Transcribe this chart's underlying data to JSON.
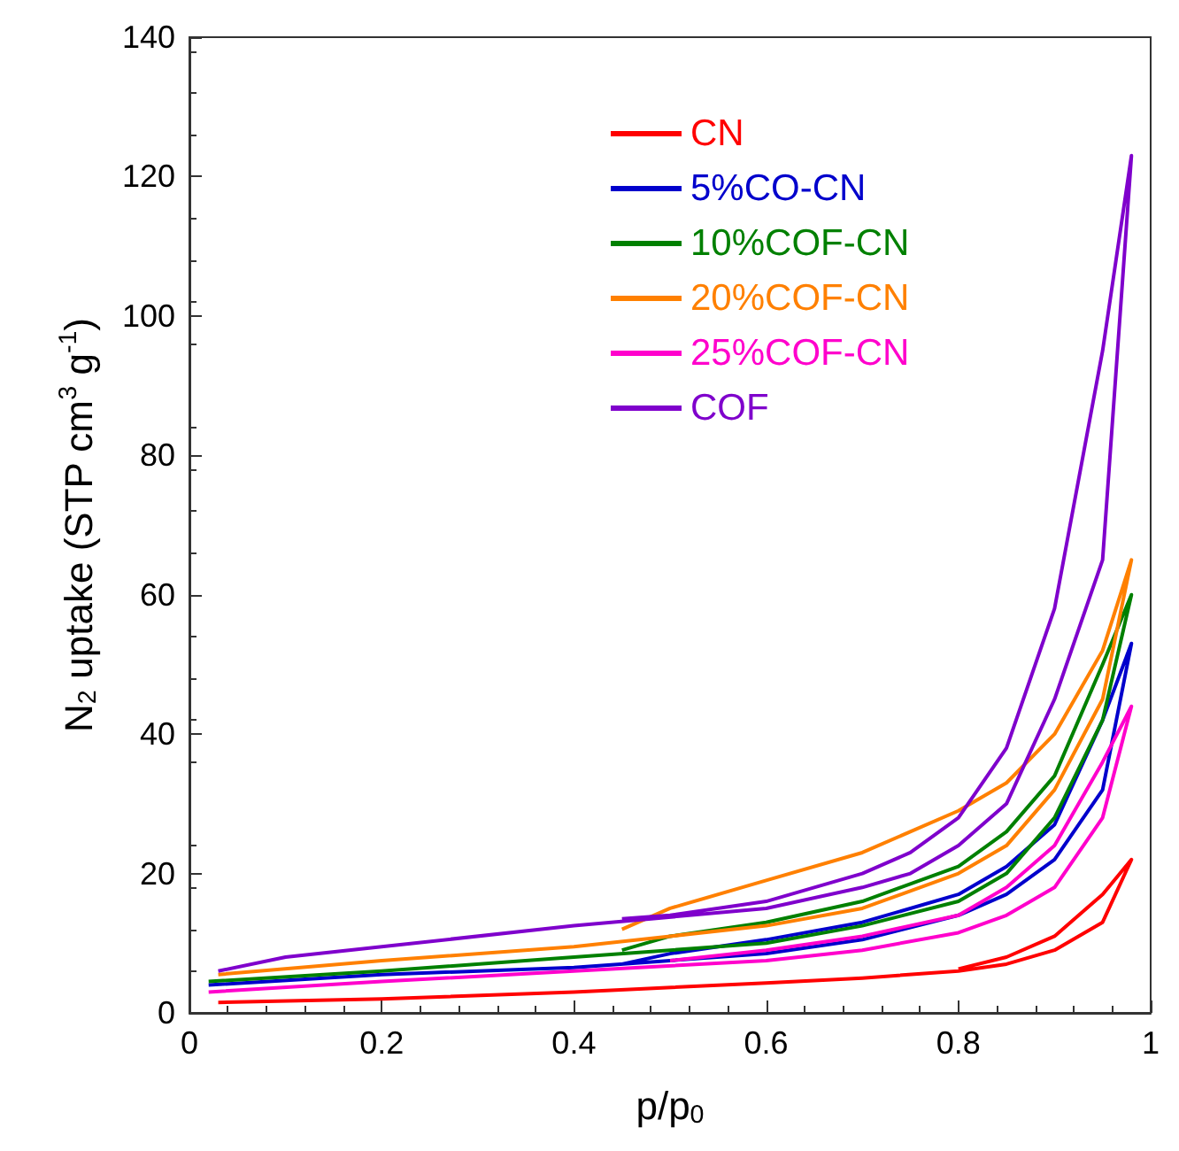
{
  "chart_data": {
    "type": "line",
    "xlabel": "p/p$_{0}$",
    "ylabel": "N$_{2}$ uptake (STP cm$^{3}$ g$^{-1}$)",
    "xlim": [
      0,
      1
    ],
    "xticks": [
      0,
      0.2,
      0.4,
      0.6,
      0.8,
      1
    ],
    "ylim": [
      0,
      140
    ],
    "yticks": [
      0,
      20,
      40,
      60,
      80,
      100,
      120,
      140
    ],
    "grid": false,
    "legend": "top",
    "marker": "none",
    "line_style": "solid",
    "series": [
      {
        "name": "CN",
        "color": "#ff0000",
        "x": [
          0.03,
          0.2,
          0.4,
          0.6,
          0.7,
          0.8,
          0.85,
          0.9,
          0.95,
          0.98,
          0.95,
          0.9,
          0.85,
          0.8
        ],
        "values": [
          1.5,
          2,
          3,
          4.3,
          5,
          6,
          7,
          9,
          13,
          22,
          17,
          11,
          8,
          6.3
        ]
      },
      {
        "name": "5%CO-CN",
        "color": "#0000cc",
        "x": [
          0.02,
          0.2,
          0.4,
          0.6,
          0.7,
          0.8,
          0.85,
          0.9,
          0.95,
          0.98,
          0.95,
          0.9,
          0.85,
          0.8,
          0.7,
          0.6,
          0.5,
          0.45
        ],
        "values": [
          4,
          5.5,
          6.5,
          8.5,
          10.5,
          14,
          17,
          22,
          32,
          53,
          42,
          27,
          21,
          17,
          13,
          10.5,
          8.5,
          7
        ]
      },
      {
        "name": "10%COF-CN",
        "color": "#008000",
        "x": [
          0.02,
          0.2,
          0.4,
          0.6,
          0.7,
          0.8,
          0.85,
          0.9,
          0.95,
          0.98,
          0.95,
          0.9,
          0.85,
          0.8,
          0.7,
          0.6,
          0.5,
          0.45
        ],
        "values": [
          4.5,
          6,
          8,
          10,
          12.5,
          16,
          20,
          28,
          42,
          60,
          50,
          34,
          26,
          21,
          16,
          13,
          11,
          9
        ]
      },
      {
        "name": "20%COF-CN",
        "color": "#ff8000",
        "x": [
          0.03,
          0.2,
          0.4,
          0.6,
          0.7,
          0.8,
          0.85,
          0.9,
          0.95,
          0.98,
          0.95,
          0.9,
          0.85,
          0.8,
          0.7,
          0.6,
          0.5,
          0.45
        ],
        "values": [
          5.5,
          7.5,
          9.5,
          12.5,
          15,
          20,
          24,
          32,
          45,
          65,
          52,
          40,
          33,
          29,
          23,
          19,
          15,
          12
        ]
      },
      {
        "name": "25%COF-CN",
        "color": "#ff00cc",
        "x": [
          0.02,
          0.2,
          0.4,
          0.6,
          0.7,
          0.8,
          0.85,
          0.9,
          0.95,
          0.98,
          0.95,
          0.9,
          0.85,
          0.8,
          0.7,
          0.6,
          0.5
        ],
        "values": [
          3,
          4.5,
          6,
          7.5,
          9,
          11.5,
          14,
          18,
          28,
          44,
          36,
          24,
          18,
          14,
          11,
          9,
          7.5
        ]
      },
      {
        "name": "COF",
        "color": "#7f00cc",
        "x": [
          0.03,
          0.1,
          0.2,
          0.4,
          0.6,
          0.7,
          0.75,
          0.8,
          0.85,
          0.9,
          0.95,
          0.98,
          0.95,
          0.9,
          0.85,
          0.8,
          0.75,
          0.7,
          0.6,
          0.5,
          0.45
        ],
        "values": [
          6,
          8,
          9.5,
          12.5,
          15,
          18,
          20,
          24,
          30,
          45,
          65,
          123,
          95,
          58,
          38,
          28,
          23,
          20,
          16,
          14,
          13.5
        ]
      }
    ]
  }
}
